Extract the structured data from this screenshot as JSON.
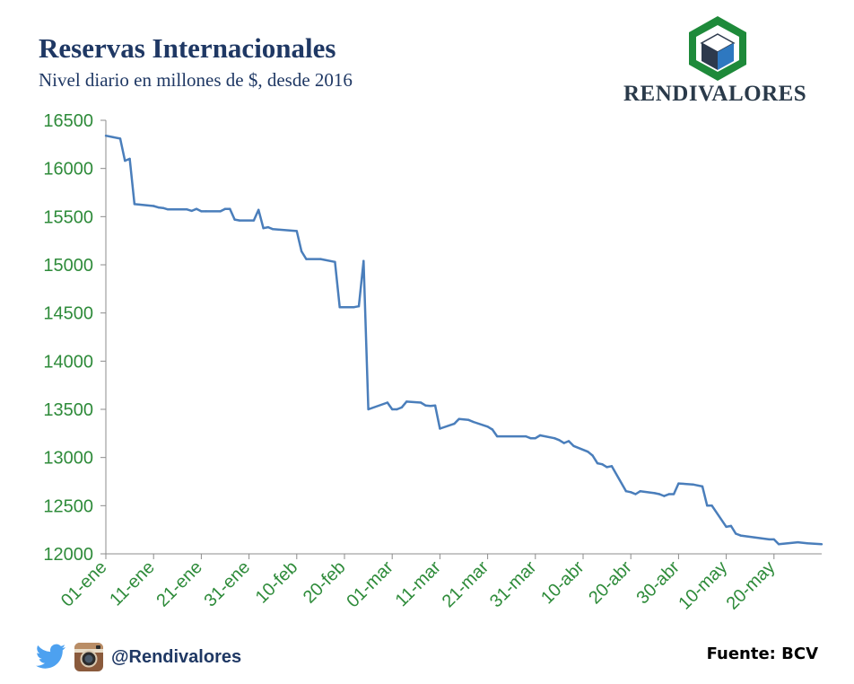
{
  "header": {
    "title": "Reservas Internacionales",
    "subtitle": "Nivel diario en millones de $, desde 2016",
    "brand": "RENDIVALORES"
  },
  "footer": {
    "handle": "@Rendivalores",
    "source": "Fuente: BCV",
    "icons": [
      "twitter-icon",
      "instagram-icon"
    ]
  },
  "colors": {
    "line": "#4a7ebb",
    "tick_text": "#2e8b3a",
    "title": "#1f3864",
    "logo_green": "#1e8a3a",
    "logo_blue": "#2e78c0",
    "logo_dark": "#2d3a4d"
  },
  "chart_data": {
    "type": "line",
    "title": "Reservas Internacionales",
    "subtitle": "Nivel diario en millones de $, desde 2016",
    "xlabel": "",
    "ylabel": "",
    "ylim": [
      12000,
      16500
    ],
    "yticks": [
      12000,
      12500,
      13000,
      13500,
      14000,
      14500,
      15000,
      15500,
      16000,
      16500
    ],
    "xlim": [
      "2016-01-01",
      "2016-05-30"
    ],
    "xticks": [
      {
        "date": "2016-01-01",
        "label": "01-ene"
      },
      {
        "date": "2016-01-11",
        "label": "11-ene"
      },
      {
        "date": "2016-01-21",
        "label": "21-ene"
      },
      {
        "date": "2016-01-31",
        "label": "31-ene"
      },
      {
        "date": "2016-02-10",
        "label": "10-feb"
      },
      {
        "date": "2016-02-20",
        "label": "20-feb"
      },
      {
        "date": "2016-03-01",
        "label": "01-mar"
      },
      {
        "date": "2016-03-11",
        "label": "11-mar"
      },
      {
        "date": "2016-03-21",
        "label": "21-mar"
      },
      {
        "date": "2016-03-31",
        "label": "31-mar"
      },
      {
        "date": "2016-04-10",
        "label": "10-abr"
      },
      {
        "date": "2016-04-20",
        "label": "20-abr"
      },
      {
        "date": "2016-04-30",
        "label": "30-abr"
      },
      {
        "date": "2016-05-10",
        "label": "10-may"
      },
      {
        "date": "2016-05-20",
        "label": "20-may"
      }
    ],
    "grid": false,
    "legend": "none",
    "series": [
      {
        "points": [
          [
            "2016-01-01",
            16340
          ],
          [
            "2016-01-04",
            16310
          ],
          [
            "2016-01-05",
            16080
          ],
          [
            "2016-01-06",
            16100
          ],
          [
            "2016-01-07",
            15630
          ],
          [
            "2016-01-08",
            15625
          ],
          [
            "2016-01-11",
            15610
          ],
          [
            "2016-01-12",
            15595
          ],
          [
            "2016-01-13",
            15590
          ],
          [
            "2016-01-14",
            15575
          ],
          [
            "2016-01-15",
            15575
          ],
          [
            "2016-01-18",
            15575
          ],
          [
            "2016-01-19",
            15560
          ],
          [
            "2016-01-20",
            15580
          ],
          [
            "2016-01-21",
            15555
          ],
          [
            "2016-01-22",
            15555
          ],
          [
            "2016-01-25",
            15555
          ],
          [
            "2016-01-26",
            15580
          ],
          [
            "2016-01-27",
            15580
          ],
          [
            "2016-01-28",
            15470
          ],
          [
            "2016-01-29",
            15460
          ],
          [
            "2016-02-01",
            15460
          ],
          [
            "2016-02-02",
            15570
          ],
          [
            "2016-02-03",
            15380
          ],
          [
            "2016-02-04",
            15390
          ],
          [
            "2016-02-05",
            15370
          ],
          [
            "2016-02-10",
            15350
          ],
          [
            "2016-02-11",
            15140
          ],
          [
            "2016-02-12",
            15060
          ],
          [
            "2016-02-15",
            15060
          ],
          [
            "2016-02-18",
            15030
          ],
          [
            "2016-02-19",
            14560
          ],
          [
            "2016-02-22",
            14560
          ],
          [
            "2016-02-23",
            14570
          ],
          [
            "2016-02-24",
            15040
          ],
          [
            "2016-02-25",
            13500
          ],
          [
            "2016-02-29",
            13570
          ],
          [
            "2016-03-01",
            13500
          ],
          [
            "2016-03-02",
            13500
          ],
          [
            "2016-03-03",
            13520
          ],
          [
            "2016-03-04",
            13580
          ],
          [
            "2016-03-07",
            13570
          ],
          [
            "2016-03-08",
            13540
          ],
          [
            "2016-03-09",
            13535
          ],
          [
            "2016-03-10",
            13540
          ],
          [
            "2016-03-11",
            13300
          ],
          [
            "2016-03-14",
            13350
          ],
          [
            "2016-03-15",
            13400
          ],
          [
            "2016-03-17",
            13390
          ],
          [
            "2016-03-18",
            13370
          ],
          [
            "2016-03-21",
            13320
          ],
          [
            "2016-03-22",
            13290
          ],
          [
            "2016-03-23",
            13220
          ],
          [
            "2016-03-29",
            13220
          ],
          [
            "2016-03-30",
            13200
          ],
          [
            "2016-03-31",
            13200
          ],
          [
            "2016-04-01",
            13230
          ],
          [
            "2016-04-04",
            13200
          ],
          [
            "2016-04-05",
            13180
          ],
          [
            "2016-04-06",
            13150
          ],
          [
            "2016-04-07",
            13170
          ],
          [
            "2016-04-08",
            13120
          ],
          [
            "2016-04-11",
            13060
          ],
          [
            "2016-04-12",
            13020
          ],
          [
            "2016-04-13",
            12940
          ],
          [
            "2016-04-14",
            12930
          ],
          [
            "2016-04-15",
            12900
          ],
          [
            "2016-04-16",
            12910
          ],
          [
            "2016-04-19",
            12650
          ],
          [
            "2016-04-20",
            12640
          ],
          [
            "2016-04-21",
            12620
          ],
          [
            "2016-04-22",
            12650
          ],
          [
            "2016-04-25",
            12630
          ],
          [
            "2016-04-26",
            12620
          ],
          [
            "2016-04-27",
            12600
          ],
          [
            "2016-04-28",
            12620
          ],
          [
            "2016-04-29",
            12620
          ],
          [
            "2016-04-30",
            12730
          ],
          [
            "2016-05-03",
            12720
          ],
          [
            "2016-05-04",
            12710
          ],
          [
            "2016-05-05",
            12700
          ],
          [
            "2016-05-06",
            12500
          ],
          [
            "2016-05-07",
            12500
          ],
          [
            "2016-05-10",
            12280
          ],
          [
            "2016-05-11",
            12290
          ],
          [
            "2016-05-12",
            12210
          ],
          [
            "2016-05-13",
            12190
          ],
          [
            "2016-05-16",
            12170
          ],
          [
            "2016-05-19",
            12150
          ],
          [
            "2016-05-20",
            12150
          ],
          [
            "2016-05-21",
            12100
          ],
          [
            "2016-05-25",
            12120
          ],
          [
            "2016-05-27",
            12110
          ],
          [
            "2016-05-30",
            12100
          ]
        ]
      }
    ]
  }
}
